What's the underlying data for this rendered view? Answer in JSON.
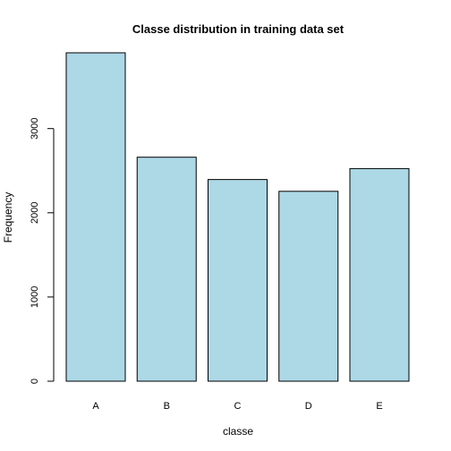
{
  "chart_data": {
    "type": "bar",
    "title": "Classe distribution in training data set",
    "xlabel": "classe",
    "ylabel": "Frequency",
    "categories": [
      "A",
      "B",
      "C",
      "D",
      "E"
    ],
    "values": [
      3900,
      2660,
      2395,
      2255,
      2525
    ],
    "ylim": [
      0,
      3900
    ],
    "yticks": [
      0,
      1000,
      2000,
      3000
    ],
    "bar_color": "#add8e6",
    "border_color": "#000000",
    "grid": false,
    "legend": "none"
  }
}
